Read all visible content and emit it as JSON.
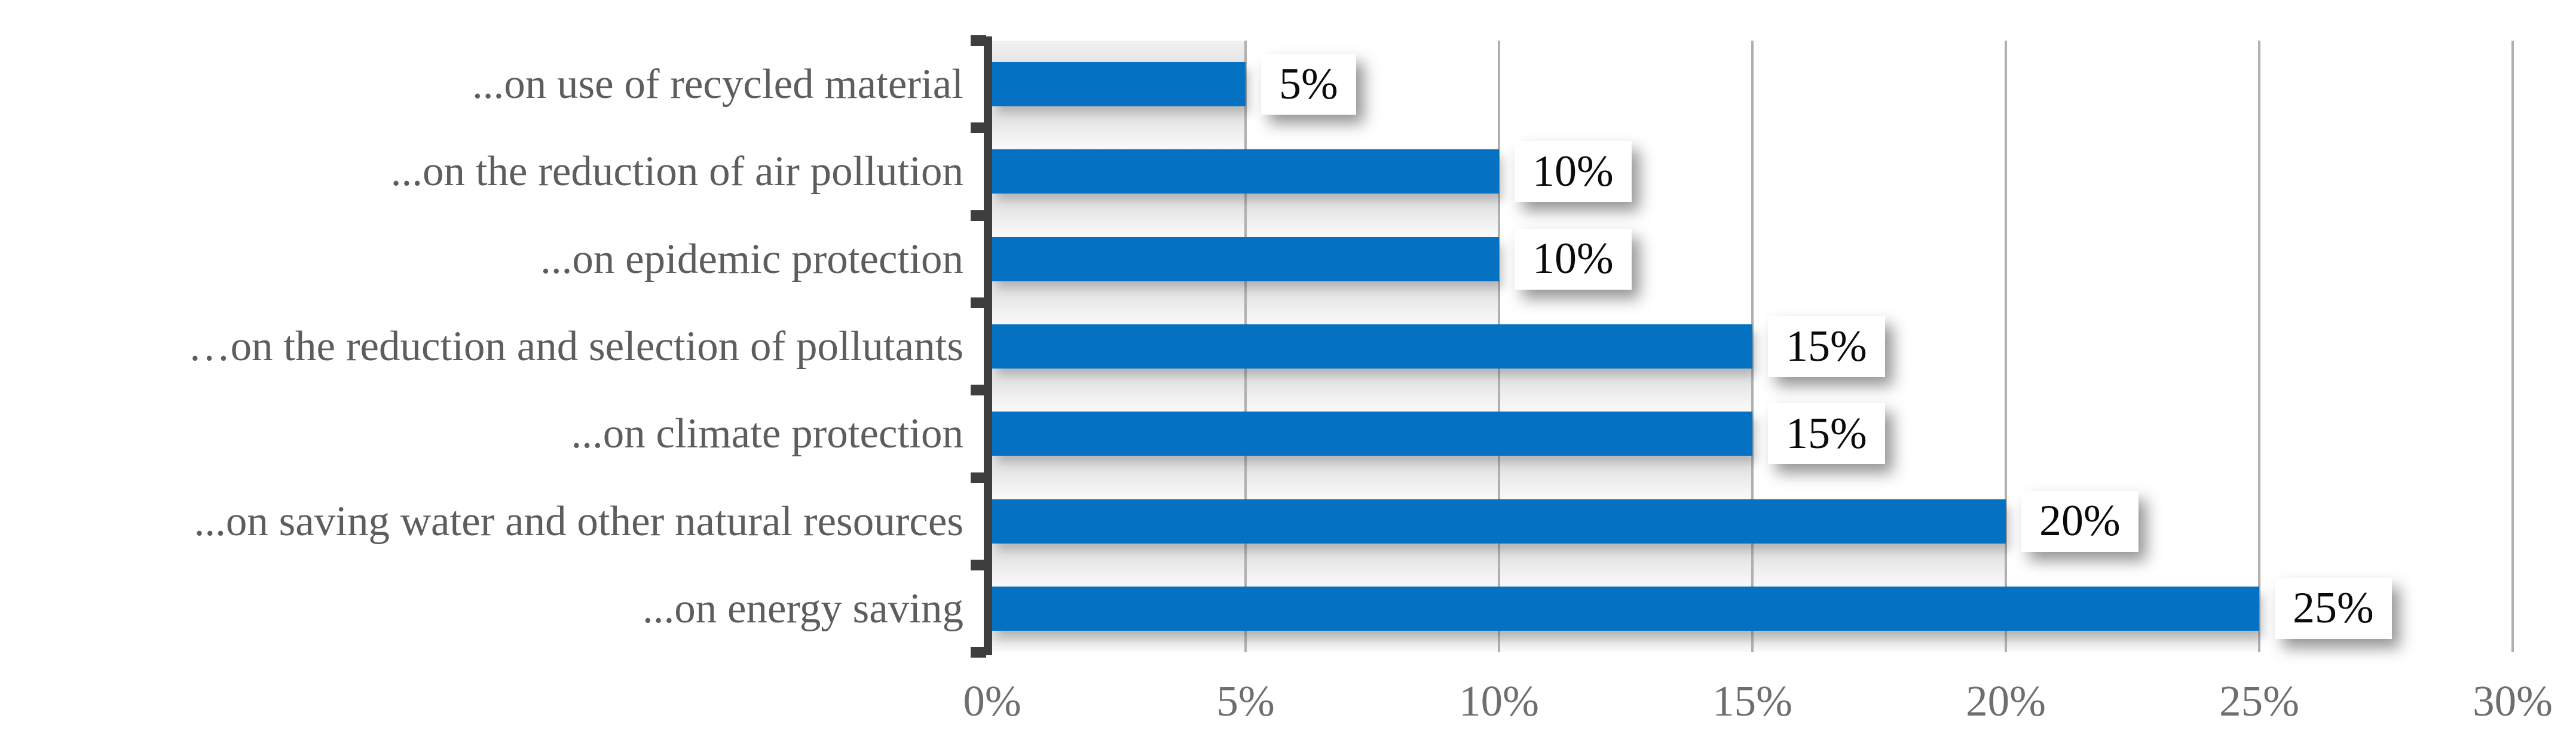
{
  "chart_data": {
    "type": "bar",
    "orientation": "horizontal",
    "title": "",
    "categories": [
      "...on use of recycled material",
      "...on the reduction of air pollution",
      "...on epidemic protection",
      "…on the reduction and selection of pollutants",
      "...on climate protection",
      "...on saving water and other natural resources",
      "...on energy saving"
    ],
    "values": [
      5,
      10,
      10,
      15,
      15,
      20,
      25
    ],
    "data_labels": [
      "5%",
      "10%",
      "10%",
      "15%",
      "15%",
      "20%",
      "25%"
    ],
    "x_ticks": [
      "0%",
      "5%",
      "10%",
      "15%",
      "20%",
      "25%",
      "30%"
    ],
    "x_tick_values": [
      0,
      5,
      10,
      15,
      20,
      25,
      30
    ],
    "xlim": [
      0,
      30
    ],
    "grid": "vertical-major",
    "legend": "none",
    "colors": {
      "bar": "#0471c2",
      "band_near": "#e6e6e7",
      "band_far": "#fafafa",
      "band_top_far": "#f1f1f1",
      "gridline": "#b0b0b0",
      "axis": "#3e3e3e",
      "category_text": "#5d5d5d",
      "tick_text": "#6e6e6e",
      "value_text": "#0a0a0a",
      "value_bg": "#ffffff",
      "background": "#ffffff"
    }
  }
}
